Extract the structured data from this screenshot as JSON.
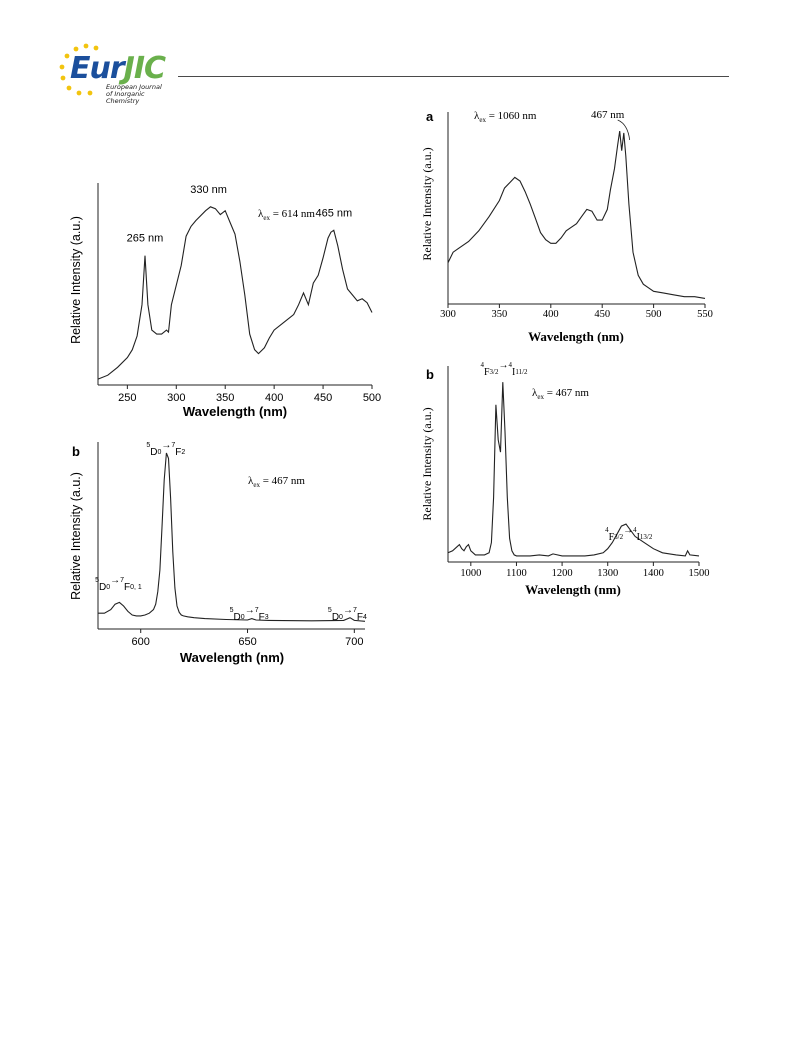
{
  "journal": {
    "logo_prefix": "Eur",
    "logo_suffix": "JIC",
    "subtitle_line1": "European Journal",
    "subtitle_line2": "of Inorganic Chemistry"
  },
  "colors": {
    "logo_blue": "#1b4f9c",
    "logo_green": "#6ab04c",
    "star_yellow": "#f2c40f",
    "trace": "#222222"
  },
  "chart_data": [
    {
      "type": "line",
      "panel_label": "",
      "xlabel": "Wavelength (nm)",
      "ylabel": "Relative Intensity (a.u.)",
      "xlim": [
        220,
        500
      ],
      "xticks": [
        250,
        300,
        350,
        400,
        450,
        500
      ],
      "annotation": "λex = 614 nm",
      "peak_labels": [
        {
          "text": "265 nm",
          "x": 268
        },
        {
          "text": "330 nm",
          "x": 333
        },
        {
          "text": "465 nm",
          "x": 461
        }
      ],
      "x": [
        220,
        230,
        240,
        250,
        255,
        260,
        265,
        268,
        271,
        275,
        280,
        285,
        290,
        292,
        295,
        300,
        305,
        310,
        315,
        320,
        330,
        335,
        340,
        345,
        350,
        355,
        360,
        365,
        370,
        375,
        380,
        384,
        390,
        395,
        400,
        410,
        420,
        425,
        430,
        435,
        440,
        445,
        450,
        455,
        458,
        461,
        465,
        470,
        475,
        480,
        485,
        490,
        495,
        500
      ],
      "y": [
        2,
        4,
        8,
        13,
        17,
        24,
        40,
        65,
        40,
        27,
        25,
        25,
        27,
        26,
        40,
        50,
        60,
        75,
        80,
        83,
        88,
        90,
        89,
        86,
        88,
        82,
        76,
        62,
        45,
        25,
        17,
        15,
        18,
        23,
        27,
        31,
        35,
        40,
        46,
        40,
        51,
        55,
        64,
        74,
        77,
        78,
        70,
        58,
        48,
        45,
        42,
        43,
        41,
        36
      ]
    },
    {
      "type": "line",
      "panel_label": "b",
      "xlabel": "Wavelength (nm)",
      "ylabel": "Relative Intensity (a.u.)",
      "xlim": [
        580,
        705
      ],
      "xticks": [
        600,
        650,
        700
      ],
      "annotation": "λex = 467 nm",
      "transitions": [
        {
          "text": "5D0→7F0, 1",
          "x": 588
        },
        {
          "text": "5D0→7F2",
          "x": 612
        },
        {
          "text": "5D0→7F3",
          "x": 651
        },
        {
          "text": "5D0→7F4",
          "x": 697
        }
      ],
      "x": [
        580,
        583,
        586,
        588,
        590,
        592,
        594,
        596,
        598,
        600,
        602,
        604,
        606,
        607,
        608,
        609,
        610,
        611,
        612,
        613,
        614,
        615,
        616,
        617,
        618,
        619,
        620,
        622,
        625,
        630,
        640,
        650,
        652,
        654,
        660,
        680,
        695,
        698,
        700,
        705
      ],
      "y": [
        6,
        6,
        8,
        11,
        12,
        10,
        7,
        5,
        4.5,
        4.5,
        5,
        6,
        8,
        11,
        18,
        30,
        55,
        80,
        95,
        92,
        70,
        40,
        20,
        10,
        6.5,
        5,
        4.5,
        4,
        3.5,
        3,
        2.5,
        2.2,
        3,
        2.2,
        2,
        1.8,
        2,
        3.5,
        2,
        1.5
      ]
    },
    {
      "type": "line",
      "panel_label": "a",
      "xlabel": "Wavelength (nm)",
      "ylabel": "Relative Intensity (a.u.)",
      "xlim": [
        300,
        550
      ],
      "xticks": [
        300,
        350,
        400,
        450,
        500,
        550
      ],
      "annotation": "λex = 1060 nm",
      "peak_labels": [
        {
          "text": "467 nm",
          "x": 467
        }
      ],
      "x": [
        300,
        305,
        310,
        320,
        330,
        340,
        350,
        355,
        360,
        365,
        370,
        375,
        380,
        385,
        390,
        395,
        400,
        405,
        410,
        415,
        420,
        425,
        430,
        435,
        440,
        445,
        450,
        455,
        458,
        462,
        465,
        467,
        469,
        471,
        473,
        476,
        480,
        485,
        490,
        495,
        500,
        510,
        520,
        530,
        540,
        550
      ],
      "y": [
        22,
        28,
        30,
        34,
        40,
        48,
        57,
        64,
        67,
        70,
        68,
        62,
        55,
        47,
        39,
        35,
        33,
        33,
        36,
        40,
        42,
        44,
        48,
        52,
        51,
        46,
        46,
        52,
        63,
        75,
        88,
        96,
        85,
        95,
        82,
        55,
        28,
        15,
        10,
        8,
        6,
        5,
        4,
        3,
        3,
        2
      ]
    },
    {
      "type": "line",
      "panel_label": "b",
      "xlabel": "Wavelength (nm)",
      "ylabel": "Relative Intensity (a.u.)",
      "xlim": [
        950,
        1500
      ],
      "xticks": [
        1000,
        1100,
        1200,
        1300,
        1400,
        1500
      ],
      "annotation": "λex = 467 nm",
      "transitions": [
        {
          "text": "4F3/2→4I11/2",
          "x": 1065
        },
        {
          "text": "4F3/2→4I13/2",
          "x": 1338
        }
      ],
      "x": [
        950,
        960,
        970,
        975,
        980,
        985,
        990,
        995,
        1000,
        1010,
        1020,
        1030,
        1040,
        1045,
        1050,
        1055,
        1060,
        1065,
        1070,
        1075,
        1080,
        1085,
        1090,
        1095,
        1100,
        1110,
        1130,
        1150,
        1170,
        1180,
        1200,
        1220,
        1250,
        1270,
        1290,
        1300,
        1310,
        1320,
        1330,
        1340,
        1350,
        1360,
        1380,
        1400,
        1420,
        1450,
        1470,
        1475,
        1480,
        1500
      ],
      "y": [
        3,
        4,
        6,
        7,
        5,
        4,
        6,
        7,
        4,
        2,
        2,
        2,
        3,
        8,
        30,
        75,
        58,
        52,
        86,
        62,
        30,
        10,
        4,
        2,
        1.5,
        1.5,
        1.5,
        2,
        1.5,
        2.5,
        1.5,
        1.5,
        1.5,
        2,
        3,
        5,
        8,
        12,
        16,
        17,
        14,
        11,
        8,
        5,
        3,
        2,
        1.5,
        4,
        2,
        1.5
      ]
    }
  ]
}
